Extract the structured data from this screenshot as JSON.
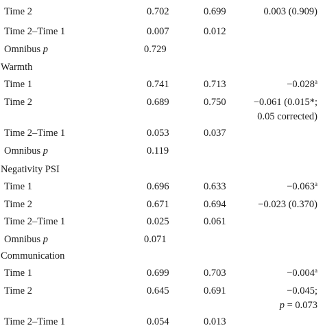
{
  "table": {
    "rows": [
      {
        "label": "Time 2",
        "col1": "0.702",
        "col2": "0.699",
        "col3": "0.003 (0.909)"
      },
      {
        "label": "Time 2–Time 1",
        "col1": "0.007",
        "col2": "0.012"
      },
      {
        "label": "Omnibus",
        "label_italic": "p",
        "col1": "0.729"
      },
      {
        "section": "Warmth"
      },
      {
        "label": "Time 1",
        "col1": "0.741",
        "col2": "0.713",
        "col3": "−0.028",
        "col3_sup": "a"
      },
      {
        "label": "Time 2",
        "col1": "0.689",
        "col2": "0.750",
        "col3_line1": "−0.061 (0.015*;",
        "col3_line2": "0.05 corrected)"
      },
      {
        "label": "Time 2–Time 1",
        "col1": "0.053",
        "col2": "0.037"
      },
      {
        "label": "Omnibus",
        "label_italic": "p",
        "col1": "0.119"
      },
      {
        "section": "Negativity PSI"
      },
      {
        "label": "Time 1",
        "col1": "0.696",
        "col2": "0.633",
        "col3": "−0.063",
        "col3_sup": "a"
      },
      {
        "label": "Time 2",
        "col1": "0.671",
        "col2": "0.694",
        "col3": "−0.023 (0.370)"
      },
      {
        "label": "Time 2–Time 1",
        "col1": "0.025",
        "col2": "0.061"
      },
      {
        "label": "Omnibus",
        "label_italic": "p",
        "col1": "0.071"
      },
      {
        "section": "Communication"
      },
      {
        "label": "Time 1",
        "col1": "0.699",
        "col2": "0.703",
        "col3": "−0.004",
        "col3_sup": "a"
      },
      {
        "label": "Time 2",
        "col1": "0.645",
        "col2": "0.691",
        "col3_line1": "−0.045;",
        "col3_line2_italic": "p",
        "col3_line2": " = 0.073"
      },
      {
        "label": "Time 2–Time 1",
        "col1": "0.054",
        "col2": "0.013"
      }
    ]
  }
}
